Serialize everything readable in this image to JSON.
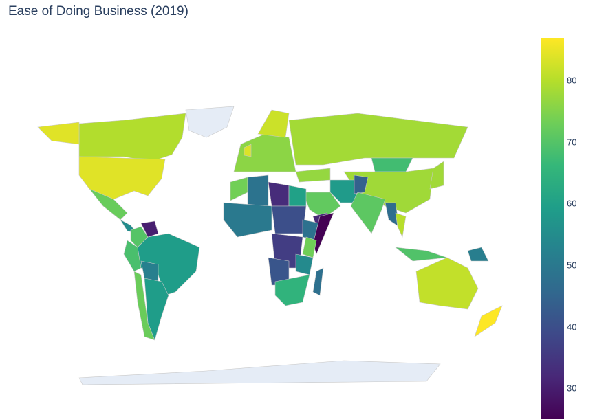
{
  "chart_data": {
    "type": "choropleth",
    "title": "Ease of Doing Business (2019)",
    "colorscale": "Viridis",
    "color_range": [
      25,
      86.8
    ],
    "colorbar_ticks": [
      30,
      40,
      50,
      60,
      70,
      80
    ],
    "no_data_color": "#e5ecf6",
    "no_data_regions": [
      "Greenland",
      "Antarctica"
    ],
    "values": {
      "United States": 84.0,
      "Canada": 79.6,
      "Mexico": 72.4,
      "Central America": 55,
      "Colombia": 70.1,
      "Venezuela": 30.2,
      "Peru": 68.7,
      "Brazil": 59.1,
      "Bolivia": 51.7,
      "Chile": 72.6,
      "Argentina": 59.0,
      "Europe": 76,
      "Scandinavia": 82,
      "United Kingdom": 83.5,
      "Russia": 78.2,
      "Mongolia": 67.8,
      "China": 77.9,
      "Turkey": 76.8,
      "Iran": 58.5,
      "Saudi Arabia": 71.6,
      "Yemen": 31.8,
      "Afghanistan": 44.1,
      "India": 71.0,
      "Myanmar": 46.8,
      "Thailand": 80.1,
      "Japan": 78.0,
      "Indonesia": 69.6,
      "Papua New Guinea": 51.5,
      "Australia": 81.2,
      "New Zealand": 86.8,
      "Morocco": 73.4,
      "Algeria": 48.6,
      "Libya": 32.7,
      "Egypt": 60.1,
      "West Africa": 50,
      "Chad/Sudan": 40,
      "Ethiopia": 48.0,
      "Somalia": 25,
      "DR Congo": 36.2,
      "Kenya": 73.2,
      "Tanzania": 54.5,
      "Angola": 41.3,
      "Southern Africa": 65,
      "Madagascar": 47.7
    }
  }
}
